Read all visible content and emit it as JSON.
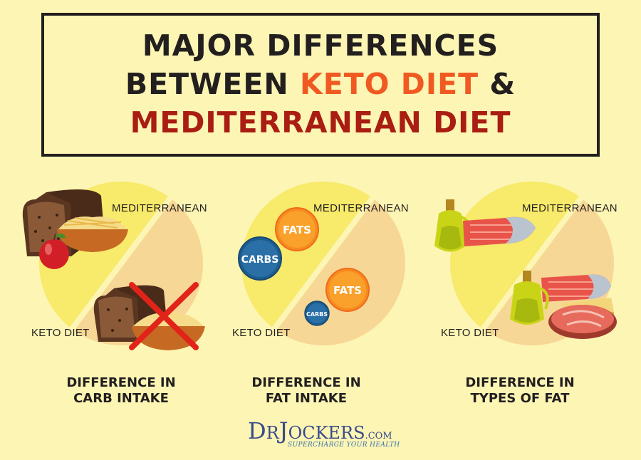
{
  "title": {
    "line1": "MAJOR DIFFERENCES",
    "line2_prefix": "BETWEEN ",
    "line2_highlight": "KETO DIET",
    "line2_suffix": " &",
    "line3": "MEDITERRANEAN DIET"
  },
  "labels": {
    "mediterranean": "MEDITERRANEAN",
    "keto": "KETO DIET"
  },
  "panels": [
    {
      "caption_line1": "DIFFERENCE IN",
      "caption_line2": "CARB INTAKE"
    },
    {
      "caption_line1": "DIFFERENCE IN",
      "caption_line2": "FAT INTAKE"
    },
    {
      "caption_line1": "DIFFERENCE IN",
      "caption_line2": "TYPES OF FAT"
    }
  ],
  "bubbles": {
    "fats": "FATS",
    "carbs": "CARBS"
  },
  "logo": {
    "d": "D",
    "r": "R",
    "j": "J",
    "ockers": "OCKERS",
    "com": ".COM",
    "tagline": "SUPERCHARGE YOUR HEALTH"
  },
  "colors": {
    "background": "#fcf5b4",
    "title_dark": "#231f1f",
    "keto_orange": "#f05a22",
    "mediterranean_red": "#a91d12",
    "pie_yellow": "#f8ea6a",
    "pie_tan": "#f7d795"
  }
}
